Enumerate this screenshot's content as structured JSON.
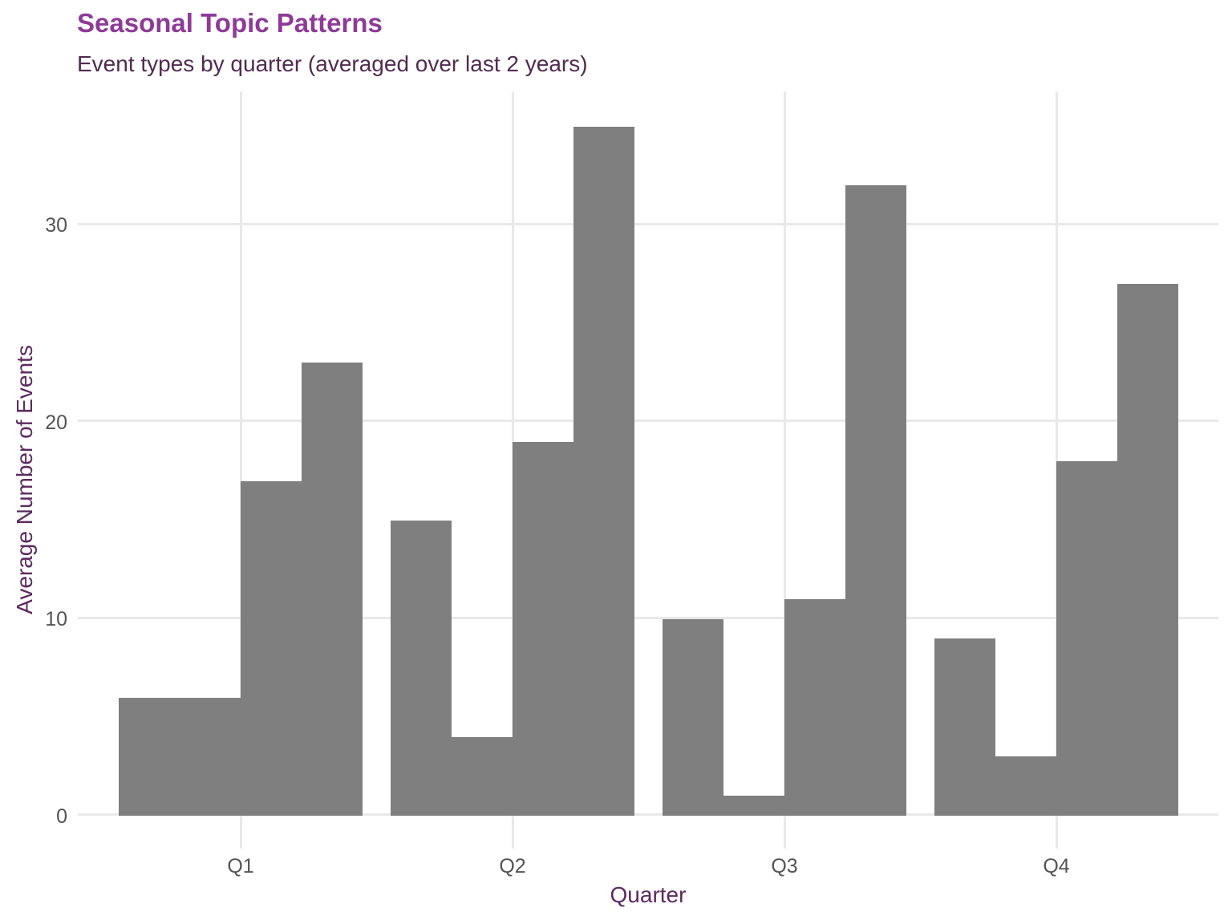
{
  "chart_data": {
    "type": "bar",
    "title": "Seasonal Topic Patterns",
    "subtitle": "Event types by quarter (averaged over last 2 years)",
    "xlabel": "Quarter",
    "ylabel": "Average Number of Events",
    "categories": [
      "Q1",
      "Q2",
      "Q3",
      "Q4"
    ],
    "series_note": "4 dodged bars per quarter, all same gray fill, no legend shown",
    "groups": [
      {
        "category": "Q1",
        "values": [
          6,
          6,
          17,
          23
        ]
      },
      {
        "category": "Q2",
        "values": [
          15,
          4,
          19,
          35
        ]
      },
      {
        "category": "Q3",
        "values": [
          10,
          1,
          11,
          32
        ]
      },
      {
        "category": "Q4",
        "values": [
          9,
          3,
          18,
          27
        ]
      }
    ],
    "yticks": [
      0,
      10,
      20,
      30
    ],
    "ylim": [
      0,
      35
    ],
    "grid": true,
    "legend_position": "none"
  },
  "colors": {
    "bar_fill": "#7f7f7f",
    "gridline": "#e9e9e9",
    "title": "#8e3a98",
    "subtitle": "#512b50",
    "axis_title": "#5c2a5e",
    "tick_label": "#545454",
    "background": "#ffffff"
  }
}
